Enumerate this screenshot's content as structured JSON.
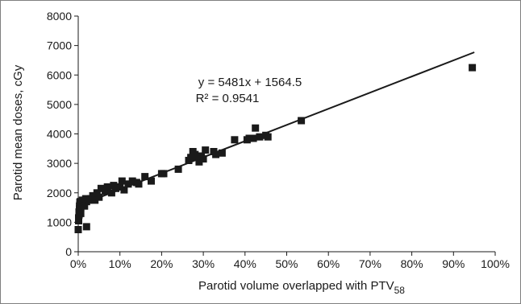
{
  "chart_data": {
    "type": "scatter",
    "xlabel": "Parotid volume overlapped with PTV",
    "xlabel_subscript": "58",
    "ylabel": "Parotid mean doses, cGy",
    "xlim": [
      0,
      1
    ],
    "ylim": [
      0,
      8000
    ],
    "x_ticks": [
      "0%",
      "10%",
      "20%",
      "30%",
      "40%",
      "50%",
      "60%",
      "70%",
      "80%",
      "90%",
      "100%"
    ],
    "y_ticks": [
      "0",
      "1000",
      "2000",
      "3000",
      "4000",
      "5000",
      "6000",
      "7000",
      "8000"
    ],
    "grid": false,
    "legend": "none",
    "marker": "square",
    "marker_color": "#1a1a1a",
    "trendline": {
      "type": "linear",
      "slope": 5481,
      "intercept": 1564.5,
      "x_range": [
        0,
        0.95
      ],
      "equation_label": "y = 5481x + 1564.5",
      "r2_label": "R² = 0.9541"
    },
    "points": [
      [
        0.0,
        750
      ],
      [
        0.001,
        1050
      ],
      [
        0.001,
        1150
      ],
      [
        0.002,
        1250
      ],
      [
        0.002,
        1350
      ],
      [
        0.003,
        1450
      ],
      [
        0.003,
        1550
      ],
      [
        0.004,
        1600
      ],
      [
        0.004,
        1680
      ],
      [
        0.005,
        1700
      ],
      [
        0.006,
        1300
      ],
      [
        0.006,
        1500
      ],
      [
        0.008,
        1600
      ],
      [
        0.01,
        1750
      ],
      [
        0.012,
        1650
      ],
      [
        0.015,
        1550
      ],
      [
        0.018,
        1800
      ],
      [
        0.02,
        1700
      ],
      [
        0.02,
        850
      ],
      [
        0.025,
        1750
      ],
      [
        0.03,
        1800
      ],
      [
        0.035,
        1900
      ],
      [
        0.04,
        1750
      ],
      [
        0.045,
        2000
      ],
      [
        0.05,
        1850
      ],
      [
        0.055,
        2150
      ],
      [
        0.065,
        2050
      ],
      [
        0.07,
        2200
      ],
      [
        0.08,
        2000
      ],
      [
        0.085,
        2250
      ],
      [
        0.09,
        2150
      ],
      [
        0.1,
        2200
      ],
      [
        0.105,
        2400
      ],
      [
        0.11,
        2100
      ],
      [
        0.12,
        2300
      ],
      [
        0.13,
        2400
      ],
      [
        0.14,
        2350
      ],
      [
        0.145,
        2300
      ],
      [
        0.16,
        2550
      ],
      [
        0.175,
        2400
      ],
      [
        0.2,
        2650
      ],
      [
        0.205,
        2650
      ],
      [
        0.24,
        2800
      ],
      [
        0.265,
        3100
      ],
      [
        0.27,
        3200
      ],
      [
        0.275,
        3400
      ],
      [
        0.28,
        3300
      ],
      [
        0.285,
        3200
      ],
      [
        0.29,
        3050
      ],
      [
        0.295,
        3250
      ],
      [
        0.3,
        3150
      ],
      [
        0.305,
        3450
      ],
      [
        0.325,
        3400
      ],
      [
        0.33,
        3300
      ],
      [
        0.345,
        3350
      ],
      [
        0.375,
        3800
      ],
      [
        0.405,
        3800
      ],
      [
        0.41,
        3850
      ],
      [
        0.42,
        3850
      ],
      [
        0.425,
        4200
      ],
      [
        0.435,
        3900
      ],
      [
        0.45,
        3950
      ],
      [
        0.455,
        3900
      ],
      [
        0.535,
        4450
      ],
      [
        0.945,
        6250
      ]
    ]
  }
}
